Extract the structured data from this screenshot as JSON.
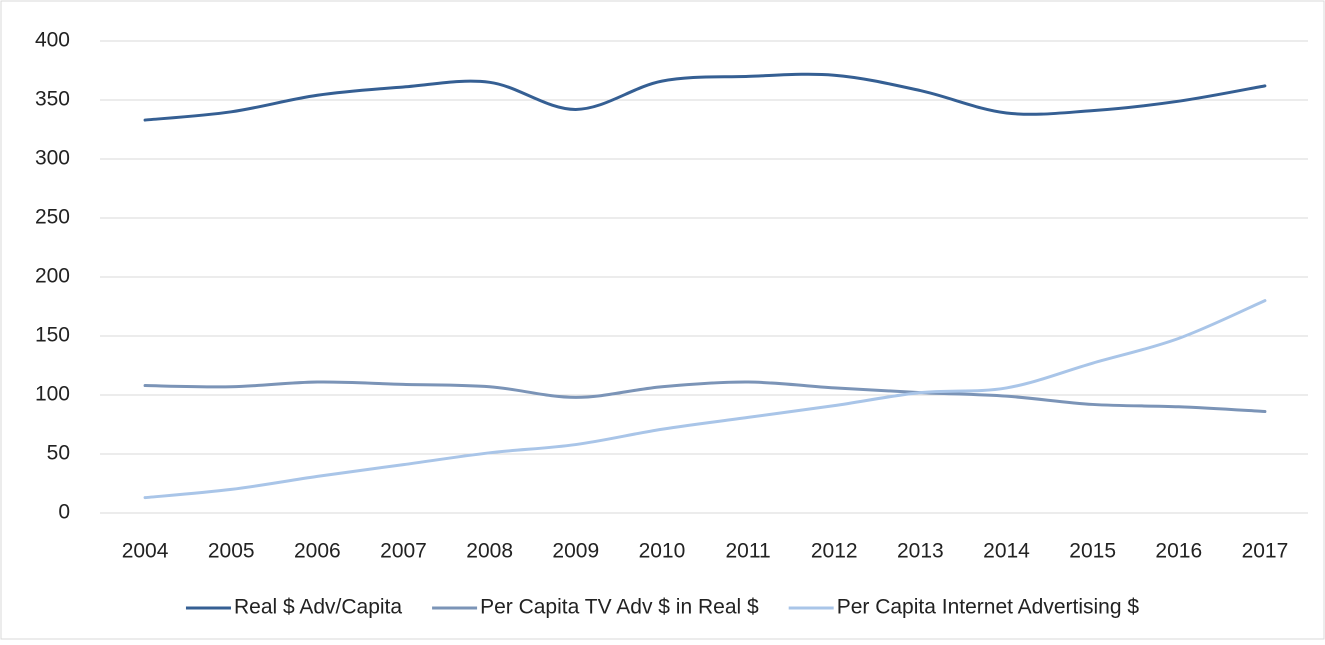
{
  "chart_data": {
    "type": "line",
    "categories": [
      "2004",
      "2005",
      "2006",
      "2007",
      "2008",
      "2009",
      "2010",
      "2011",
      "2012",
      "2013",
      "2014",
      "2015",
      "2016",
      "2017"
    ],
    "series": [
      {
        "name": "Real $ Adv/Capita",
        "color": "#355f93",
        "values": [
          333,
          340,
          354,
          361,
          365,
          342,
          366,
          370,
          371,
          358,
          339,
          341,
          349,
          362
        ]
      },
      {
        "name": "Per Capita TV Adv $ in Real $",
        "color": "#7b94b7",
        "values": [
          108,
          107,
          111,
          109,
          107,
          98,
          107,
          111,
          106,
          102,
          99,
          92,
          90,
          86
        ]
      },
      {
        "name": "Per Capita Internet Advertising $",
        "color": "#a9c5e8",
        "values": [
          13,
          20,
          31,
          41,
          51,
          58,
          71,
          81,
          91,
          102,
          106,
          127,
          148,
          180
        ]
      }
    ],
    "ylim": [
      0,
      400
    ],
    "yticks": [
      0,
      50,
      100,
      150,
      200,
      250,
      300,
      350,
      400
    ],
    "grid": true,
    "legend": "bottom",
    "smooth": true
  }
}
